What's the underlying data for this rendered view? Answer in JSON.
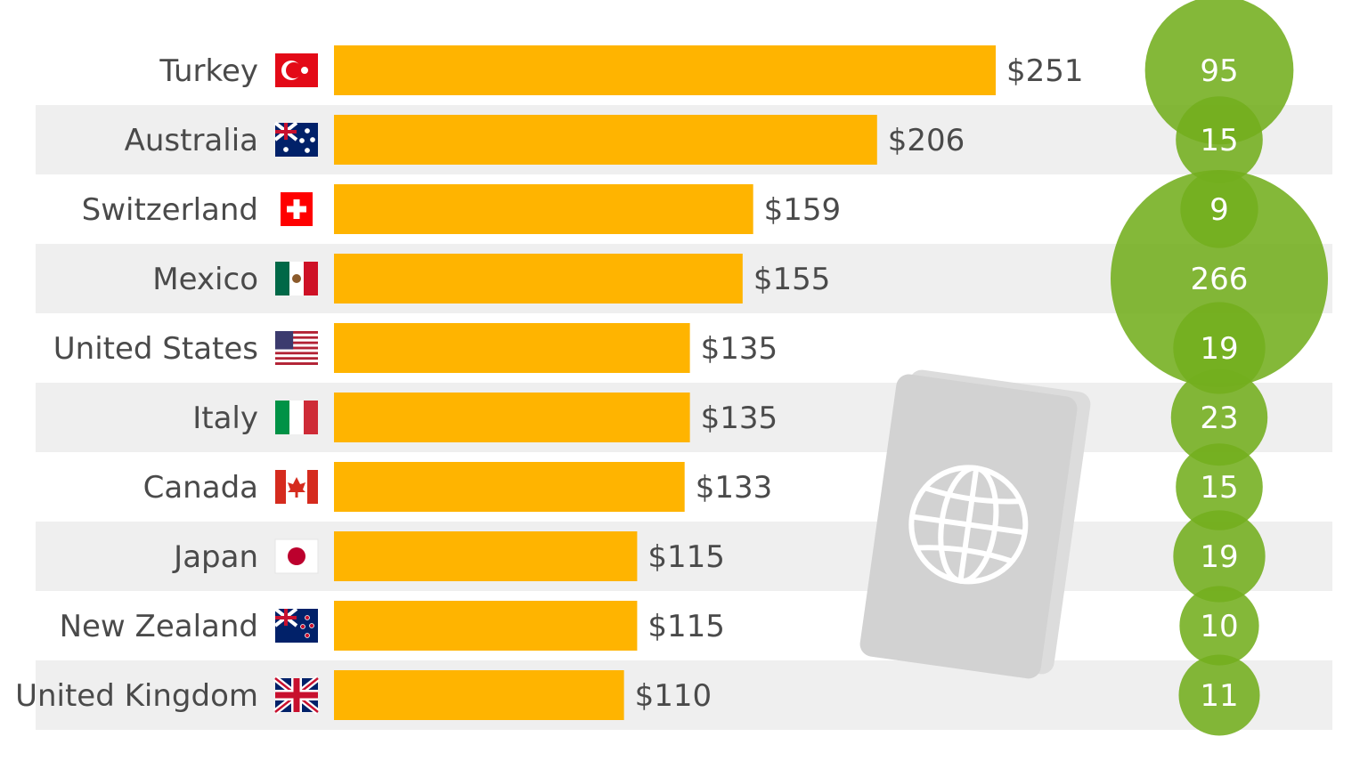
{
  "chart_data": {
    "type": "bar",
    "orientation": "horizontal",
    "categories": [
      "Turkey",
      "Australia",
      "Switzerland",
      "Mexico",
      "United States",
      "Italy",
      "Canada",
      "Japan",
      "New Zealand",
      "United Kingdom"
    ],
    "values": [
      251,
      206,
      159,
      155,
      135,
      135,
      133,
      115,
      115,
      110
    ],
    "value_labels": [
      "$251",
      "$206",
      "$159",
      "$155",
      "$135",
      "$135",
      "$133",
      "$115",
      "$115",
      "$110"
    ],
    "bubble_values": [
      95,
      15,
      9,
      266,
      19,
      23,
      15,
      19,
      10,
      11
    ],
    "xlim": [
      0,
      251
    ],
    "grid": false,
    "colors": {
      "bar": "#FFB400",
      "bubble": "#73AE1E",
      "row_stripe": "#EFEFEF",
      "label": "#4A4A4A",
      "passport": "#D3D3D3"
    },
    "flags": [
      "turkey-flag",
      "australia-flag",
      "switzerland-flag",
      "mexico-flag",
      "united-states-flag",
      "italy-flag",
      "canada-flag",
      "japan-flag",
      "new-zealand-flag",
      "united-kingdom-flag"
    ],
    "decoration_icon": "passport-globe-icon"
  }
}
